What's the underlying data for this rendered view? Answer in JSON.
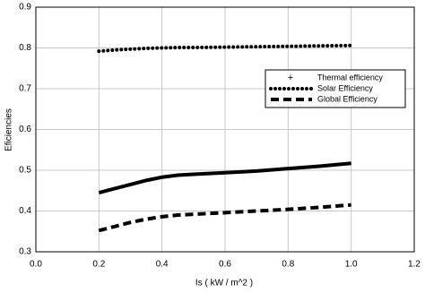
{
  "chart_data": {
    "type": "line",
    "x_label": "Is ( kW / m^2 )",
    "y_label": "Eficiencies",
    "x": [
      0.2,
      0.25,
      0.3,
      0.35,
      0.4,
      0.45,
      0.5,
      0.6,
      0.7,
      0.8,
      0.9,
      1.0
    ],
    "series": [
      {
        "name": "Thermal efficiency",
        "color": "#000000",
        "style": "solid",
        "values": [
          0.445,
          0.455,
          0.465,
          0.475,
          0.483,
          0.488,
          0.49,
          0.494,
          0.498,
          0.504,
          0.51,
          0.517
        ]
      },
      {
        "name": "Solar Efficiency",
        "color": "#000000",
        "style": "dotted",
        "values": [
          0.792,
          0.795,
          0.797,
          0.799,
          0.8,
          0.801,
          0.801,
          0.802,
          0.803,
          0.804,
          0.805,
          0.806
        ]
      },
      {
        "name": "Global Efficiency",
        "color": "#000000",
        "style": "dashed",
        "values": [
          0.352,
          0.362,
          0.372,
          0.38,
          0.386,
          0.39,
          0.392,
          0.396,
          0.4,
          0.404,
          0.409,
          0.415
        ]
      }
    ],
    "xlim": [
      0,
      1.2
    ],
    "xticks": [
      {
        "value": 0,
        "label": "0.0"
      },
      0.2,
      0.4,
      0.6,
      0.8,
      {
        "value": 1,
        "label": "1.0"
      },
      1.2
    ],
    "ylim": [
      0.3,
      0.9
    ],
    "yticks": [
      0.3,
      0.4,
      0.5,
      0.6,
      0.7,
      0.8,
      0.9
    ],
    "grid": true,
    "legend": "upper-right"
  }
}
